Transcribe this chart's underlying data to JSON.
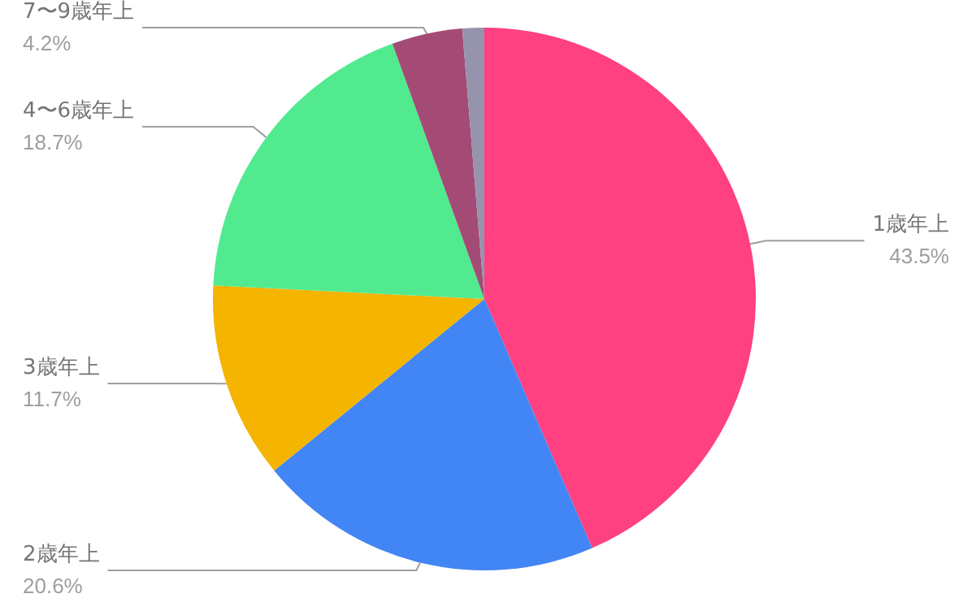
{
  "chart_data": {
    "type": "pie",
    "categories": [
      "1歳年上",
      "2歳年上",
      "3歳年上",
      "4〜6歳年上",
      "7〜9歳年上",
      null
    ],
    "values": [
      43.5,
      20.6,
      11.7,
      18.7,
      4.2,
      1.3
    ],
    "colors": [
      "#ff4081",
      "#4285f4",
      "#f4b400",
      "#51ea8f",
      "#a34b75",
      "#9693ad"
    ],
    "value_labels": [
      "43.5%",
      "20.6%",
      "11.7%",
      "18.7%",
      "4.2%",
      null
    ],
    "legend": false
  }
}
